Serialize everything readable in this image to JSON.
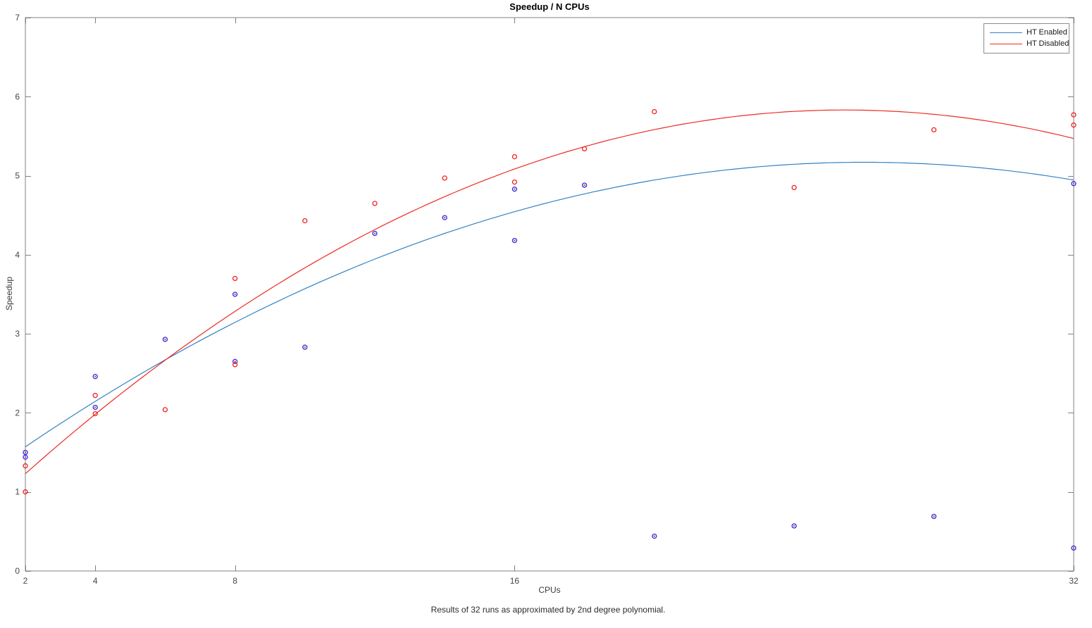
{
  "chart_data": {
    "type": "scatter",
    "title": "Speedup / N CPUs",
    "xlabel": "CPUs",
    "ylabel": "Speedup",
    "caption": "Results of 32 runs as approximated by 2nd degree polynomial.",
    "x_scale": "linear",
    "xlim": [
      2,
      32
    ],
    "ylim": [
      0,
      7
    ],
    "x_ticks": [
      2,
      4,
      8,
      16,
      32
    ],
    "y_ticks": [
      0,
      1,
      2,
      3,
      4,
      5,
      6,
      7
    ],
    "grid": false,
    "legend_position": "top-right",
    "axis_color": "#808080",
    "tick_label_color": "#464646",
    "series": [
      {
        "name": "HT Enabled",
        "line_color": "#3282c3",
        "marker_color": "#2a2ae0",
        "marker_center_color": "#d43a3a",
        "points": [
          [
            2,
            1.5
          ],
          [
            2,
            1.44
          ],
          [
            4,
            2.46
          ],
          [
            4,
            2.07
          ],
          [
            6,
            2.93
          ],
          [
            8,
            3.5
          ],
          [
            8,
            2.65
          ],
          [
            10,
            2.83
          ],
          [
            12,
            4.27
          ],
          [
            14,
            4.47
          ],
          [
            16,
            4.83
          ],
          [
            16,
            4.18
          ],
          [
            18,
            4.88
          ],
          [
            20,
            0.44
          ],
          [
            24,
            0.57
          ],
          [
            28,
            0.69
          ],
          [
            32,
            4.9
          ],
          [
            32,
            0.29
          ]
        ],
        "fit_poly2": [
          -0.00625,
          0.325,
          0.945
        ]
      },
      {
        "name": "HT Disabled",
        "line_color": "#ee2a21",
        "marker_color": "#f32020",
        "points": [
          [
            2,
            1.33
          ],
          [
            2,
            1.0
          ],
          [
            4,
            2.22
          ],
          [
            4,
            1.99
          ],
          [
            6,
            2.04
          ],
          [
            8,
            3.7
          ],
          [
            8,
            2.61
          ],
          [
            10,
            4.43
          ],
          [
            12,
            4.65
          ],
          [
            14,
            4.97
          ],
          [
            16,
            5.24
          ],
          [
            16,
            4.92
          ],
          [
            18,
            5.34
          ],
          [
            20,
            5.81
          ],
          [
            24,
            4.85
          ],
          [
            28,
            5.58
          ],
          [
            32,
            5.77
          ],
          [
            32,
            5.64
          ]
        ],
        "fit_poly2": [
          -0.008372,
          0.426,
          0.412
        ]
      }
    ]
  }
}
